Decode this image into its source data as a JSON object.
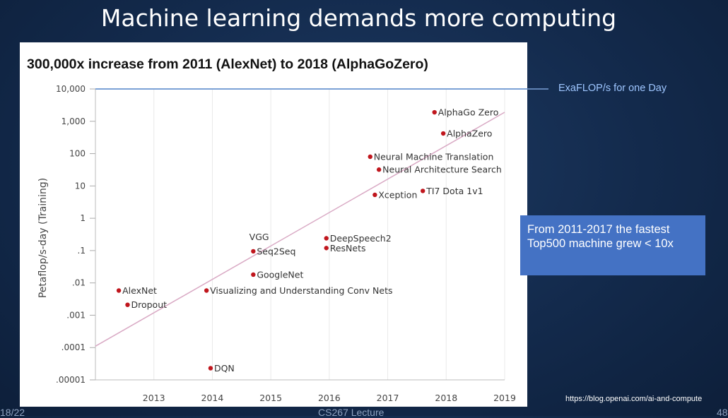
{
  "slide": {
    "title": "Machine learning demands more computing",
    "footer_left": "18/22",
    "footer_center": "CS267 Lecture",
    "footer_right": "48",
    "source": "https://blog.openai.com/ai-and-compute"
  },
  "callouts": {
    "exaflop": "ExaFLOP/s for one Day",
    "top500": "From 2011-2017 the fastest Top500 machine grew < 10x",
    "colors": {
      "exaflop_line": "#7ba1d6",
      "top500_box": "#4472c4"
    }
  },
  "chart_data": {
    "type": "scatter",
    "title": "300,000x increase from 2011 (AlexNet) to 2018 (AlphaGoZero)",
    "xlabel": "",
    "ylabel": "Petaflop/s-day (Training)",
    "xlim": [
      2012.0,
      2019.0
    ],
    "ylim": [
      1e-05,
      10000
    ],
    "yscale": "log",
    "x_ticks": [
      "2013",
      "2014",
      "2015",
      "2016",
      "2017",
      "2018",
      "2019"
    ],
    "x_tick_values": [
      2013,
      2014,
      2015,
      2016,
      2017,
      2018,
      2019
    ],
    "y_ticks": [
      "10,000",
      "1,000",
      "100",
      "10",
      "1",
      ".1",
      ".01",
      ".001",
      ".0001",
      ".00001"
    ],
    "y_tick_values": [
      10000,
      1000,
      100,
      10,
      1,
      0.1,
      0.01,
      0.001,
      0.0001,
      1e-05
    ],
    "exaflop_day_level": 10000,
    "trend_line": {
      "x": [
        2012.0,
        2019.0
      ],
      "y": [
        0.00011,
        1900
      ]
    },
    "points": [
      {
        "label": "AlexNet",
        "x": 2012.4,
        "y": 0.0058
      },
      {
        "label": "Dropout",
        "x": 2012.55,
        "y": 0.0021
      },
      {
        "label": "Visualizing and Understanding Conv Nets",
        "x": 2013.9,
        "y": 0.0058
      },
      {
        "label": "DQN",
        "x": 2013.97,
        "y": 2.3e-05
      },
      {
        "label": "VGG",
        "x": 2014.68,
        "y": 0.1
      },
      {
        "label": "Seq2Seq",
        "x": 2014.7,
        "y": 0.095
      },
      {
        "label": "GoogleNet",
        "x": 2014.7,
        "y": 0.018
      },
      {
        "label": "DeepSpeech2",
        "x": 2015.95,
        "y": 0.24
      },
      {
        "label": "ResNets",
        "x": 2015.95,
        "y": 0.12
      },
      {
        "label": "Neural Machine Translation",
        "x": 2016.7,
        "y": 80
      },
      {
        "label": "Neural Architecture Search",
        "x": 2016.85,
        "y": 32
      },
      {
        "label": "Xception",
        "x": 2016.78,
        "y": 5.3
      },
      {
        "label": "TI7 Dota 1v1",
        "x": 2017.6,
        "y": 7
      },
      {
        "label": "AlphaGo Zero",
        "x": 2017.8,
        "y": 1900
      },
      {
        "label": "AlphaZero",
        "x": 2017.95,
        "y": 420
      }
    ],
    "colors": {
      "point": "#c0161d",
      "trend": "#d9a9c4",
      "grid": "#e9e9e9"
    }
  }
}
